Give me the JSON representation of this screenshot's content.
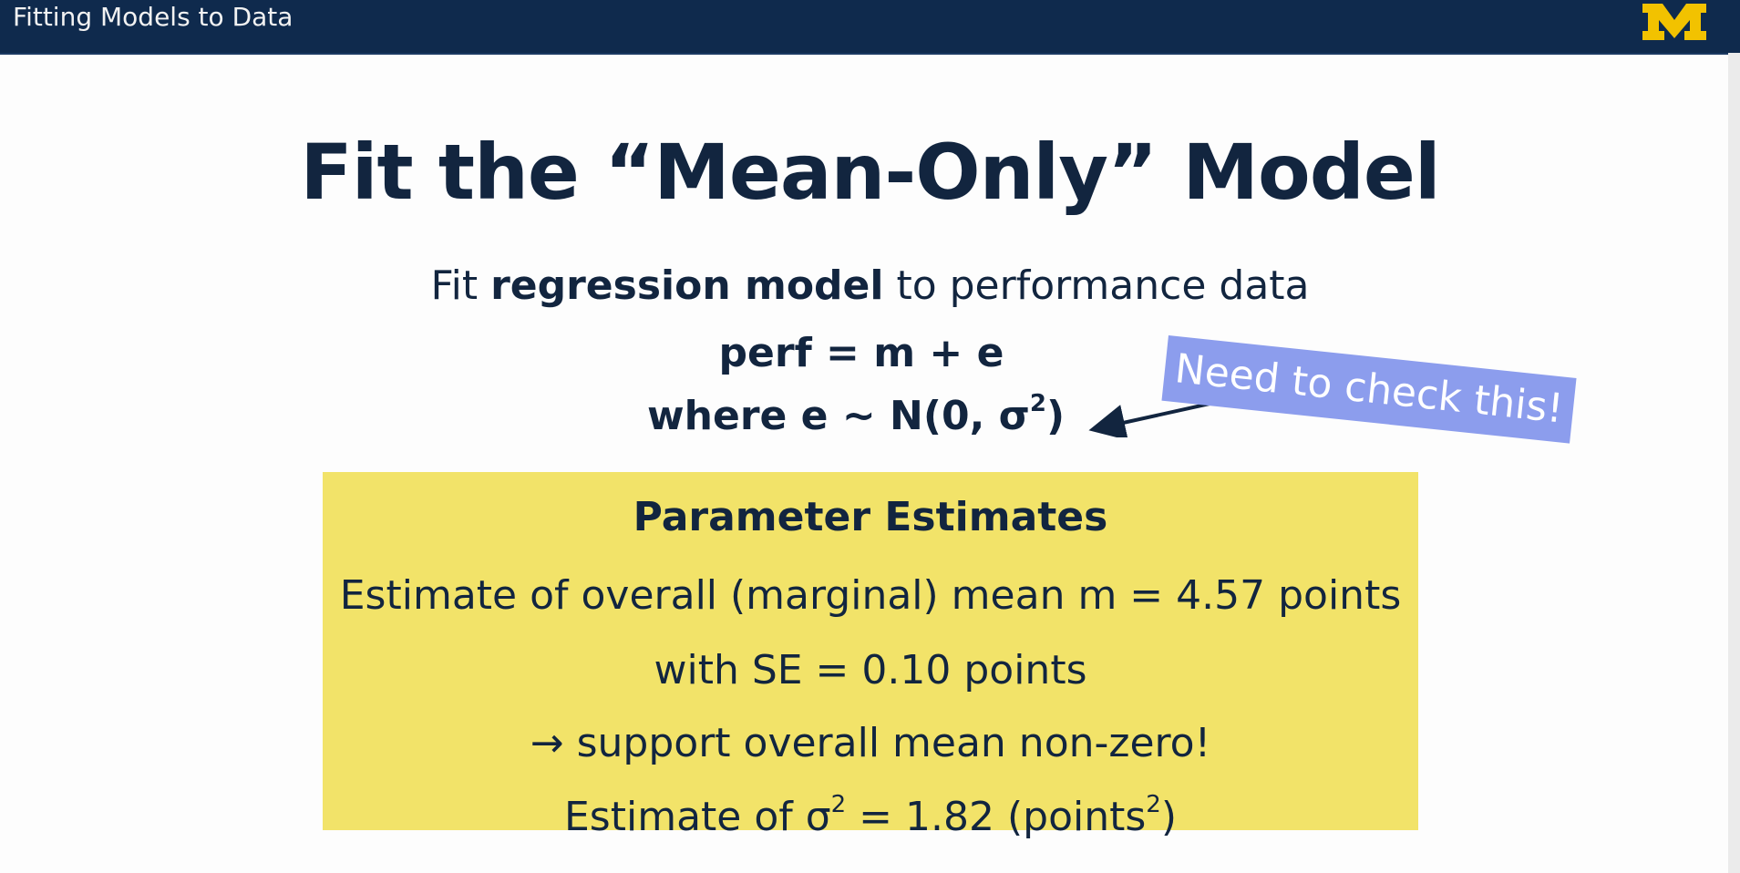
{
  "header": {
    "title": "Fitting Models to Data",
    "logo_letter": "M"
  },
  "slide": {
    "title": "Fit the “Mean-Only” Model",
    "subtitle_prefix": "Fit ",
    "subtitle_bold": "regression model",
    "subtitle_suffix": " to performance data",
    "equation_1": "perf = m + e",
    "equation_2_main": "where e ~ N(0, σ",
    "equation_2_sup": "2",
    "equation_2_end": ")",
    "callout": "Need to check this!"
  },
  "panel": {
    "heading": "Parameter Estimates",
    "line_1": "Estimate of overall (marginal) mean m = 4.57 points",
    "line_2": "with SE = 0.10 points",
    "line_3": "→ support overall mean non-zero!",
    "line_4_a": "Estimate of σ",
    "line_4_sup1": "2",
    "line_4_b": " = 1.82 (points",
    "line_4_sup2": "2",
    "line_4_c": ")"
  },
  "colors": {
    "topbar": "#0f2a4d",
    "text": "#12253f",
    "panel": "#f2e369",
    "callout": "#8c9ded",
    "logo": "#f2c200"
  }
}
